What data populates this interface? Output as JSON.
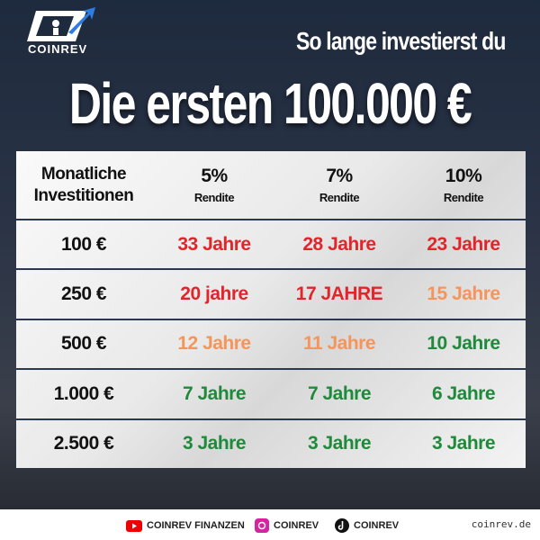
{
  "header": {
    "logo": "COINREV",
    "subtitle": "So lange investierst du",
    "title": "Die ersten 100.000 €"
  },
  "table": {
    "corner": "Monatliche Investitionen",
    "columns": [
      {
        "rate": "5%",
        "label": "Rendite"
      },
      {
        "rate": "7%",
        "label": "Rendite"
      },
      {
        "rate": "10%",
        "label": "Rendite"
      }
    ],
    "rows": [
      {
        "amount": "100 €",
        "cells": [
          "33 Jahre",
          "28 Jahre",
          "23 Jahre"
        ],
        "colors": [
          "#e3242b",
          "#e3242b",
          "#e3242b"
        ]
      },
      {
        "amount": "250 €",
        "cells": [
          "20 jahre",
          "17 JAHRE",
          "15 Jahre"
        ],
        "colors": [
          "#e3242b",
          "#e3242b",
          "#f5955a"
        ]
      },
      {
        "amount": "500 €",
        "cells": [
          "12 Jahre",
          "11 Jahre",
          "10 Jahre"
        ],
        "colors": [
          "#f5955a",
          "#f5955a",
          "#1f8a3c"
        ]
      },
      {
        "amount": "1.000 €",
        "cells": [
          "7 Jahre",
          "7 Jahre",
          "6 Jahre"
        ],
        "colors": [
          "#1f8a3c",
          "#1f8a3c",
          "#1f8a3c"
        ]
      },
      {
        "amount": "2.500 €",
        "cells": [
          "3 Jahre",
          "3 Jahre",
          "3 Jahre"
        ],
        "colors": [
          "#1f8a3c",
          "#1f8a3c",
          "#1f8a3c"
        ]
      }
    ]
  },
  "footer": {
    "youtube": "COINREV FINANZEN",
    "instagram": "COINREV",
    "tiktok": "COINREV",
    "website": "coinrev.de"
  }
}
